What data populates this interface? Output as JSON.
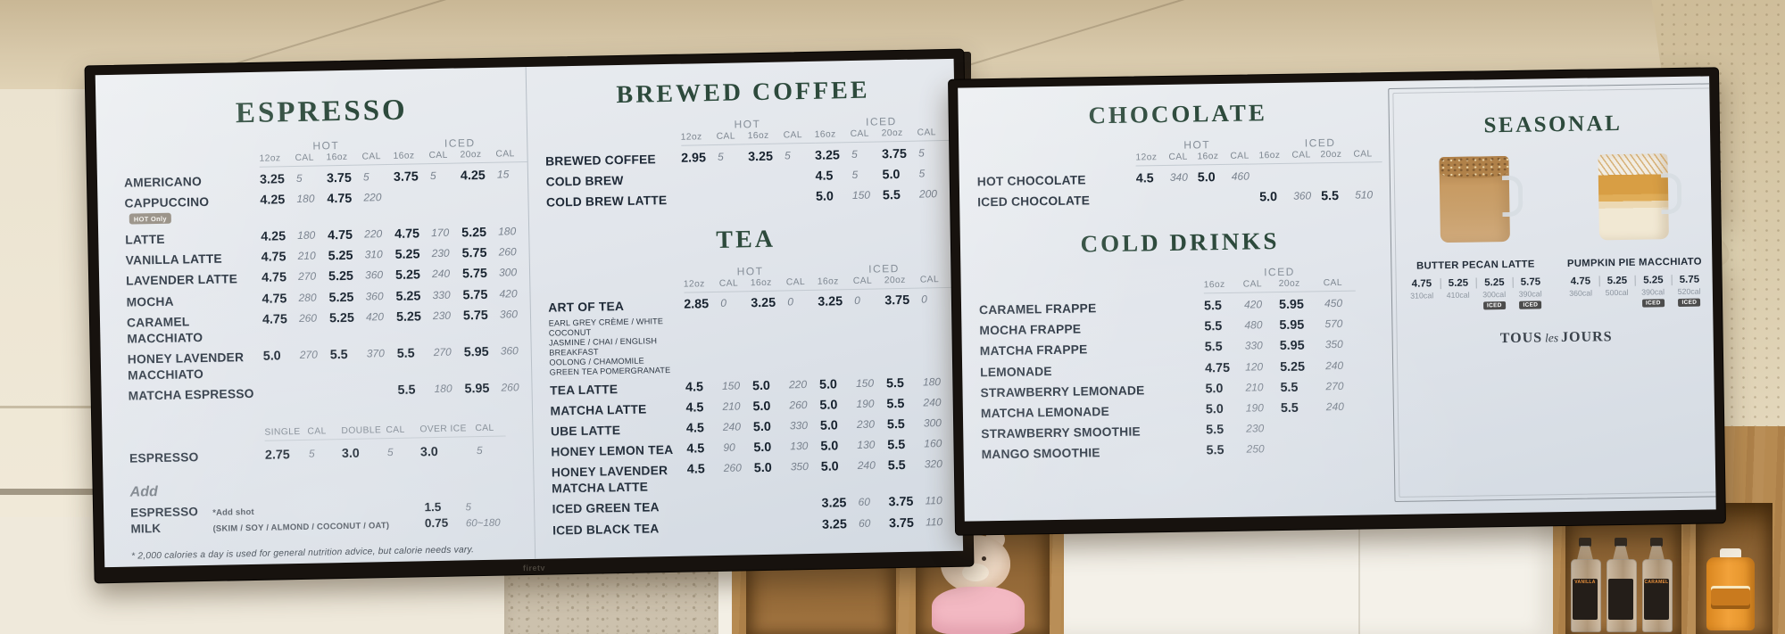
{
  "scene": {
    "bezel_brand": "firetv",
    "syrup_labels": [
      "VANILLA",
      "",
      "CARAMEL"
    ],
    "colors": {
      "title_green": "#2d4a3c",
      "screen_bg": "#e3e7ec",
      "bezel": "#17120e",
      "hot_only_badge": "#8d8579",
      "iced_badge": "#4c4c4c",
      "wood": "#b08449",
      "ceiling": "#d8c9ab"
    }
  },
  "left_screen": {
    "espresso": {
      "title": "ESPRESSO",
      "groups": [
        {
          "label": "HOT",
          "cols": [
            "12oz",
            "CAL",
            "16oz",
            "CAL"
          ]
        },
        {
          "label": "ICED",
          "cols": [
            "16oz",
            "CAL",
            "20oz",
            "CAL"
          ]
        }
      ],
      "items": [
        {
          "name": "AMERICANO",
          "cells": [
            "3.25",
            "5",
            "3.75",
            "5",
            "3.75",
            "5",
            "4.25",
            "15"
          ]
        },
        {
          "name": "CAPPUCCINO",
          "badge": "HOT Only",
          "cells": [
            "4.25",
            "180",
            "4.75",
            "220",
            "",
            "",
            "",
            ""
          ]
        },
        {
          "name": "LATTE",
          "cells": [
            "4.25",
            "180",
            "4.75",
            "220",
            "4.75",
            "170",
            "5.25",
            "180"
          ]
        },
        {
          "name": "VANILLA LATTE",
          "cells": [
            "4.75",
            "210",
            "5.25",
            "310",
            "5.25",
            "230",
            "5.75",
            "260"
          ]
        },
        {
          "name": "LAVENDER LATTE",
          "cells": [
            "4.75",
            "270",
            "5.25",
            "360",
            "5.25",
            "240",
            "5.75",
            "300"
          ]
        },
        {
          "name": "MOCHA",
          "cells": [
            "4.75",
            "280",
            "5.25",
            "360",
            "5.25",
            "330",
            "5.75",
            "420"
          ]
        },
        {
          "name": "CARAMEL MACCHIATO",
          "cells": [
            "4.75",
            "260",
            "5.25",
            "420",
            "5.25",
            "230",
            "5.75",
            "360"
          ]
        },
        {
          "name": "HONEY LAVENDER MACCHIATO",
          "cells": [
            "5.0",
            "270",
            "5.5",
            "370",
            "5.5",
            "270",
            "5.95",
            "360"
          ]
        },
        {
          "name": "MATCHA ESPRESSO",
          "cells": [
            "",
            "",
            "",
            "",
            "5.5",
            "180",
            "5.95",
            "260"
          ]
        }
      ]
    },
    "espresso_shots": {
      "cols": [
        "SINGLE",
        "CAL",
        "DOUBLE",
        "CAL",
        "OVER ICE",
        "CAL"
      ],
      "items": [
        {
          "name": "ESPRESSO",
          "cells": [
            "2.75",
            "5",
            "3.0",
            "5",
            "3.0",
            "5"
          ]
        }
      ]
    },
    "add": {
      "title": "Add",
      "items": [
        {
          "name": "ESPRESSO",
          "note": "*Add shot",
          "price": "1.5",
          "cal": "5"
        },
        {
          "name": "MILK",
          "note": "(SKIM / SOY / ALMOND / COCONUT / OAT)",
          "price": "0.75",
          "cal": "60~180"
        }
      ]
    },
    "footnote": "* 2,000 calories a day is used for general nutrition advice, but calorie needs vary.",
    "brewed_coffee": {
      "title": "BREWED COFFEE",
      "groups": [
        {
          "label": "HOT",
          "cols": [
            "12oz",
            "CAL",
            "16oz",
            "CAL"
          ]
        },
        {
          "label": "ICED",
          "cols": [
            "16oz",
            "CAL",
            "20oz",
            "CAL"
          ]
        }
      ],
      "items": [
        {
          "name": "BREWED COFFEE",
          "cells": [
            "2.95",
            "5",
            "3.25",
            "5",
            "3.25",
            "5",
            "3.75",
            "5"
          ]
        },
        {
          "name": "COLD BREW",
          "cells": [
            "",
            "",
            "",
            "",
            "4.5",
            "5",
            "5.0",
            "5"
          ]
        },
        {
          "name": "COLD BREW LATTE",
          "cells": [
            "",
            "",
            "",
            "",
            "5.0",
            "150",
            "5.5",
            "200"
          ]
        }
      ]
    },
    "tea": {
      "title": "TEA",
      "groups": [
        {
          "label": "HOT",
          "cols": [
            "12oz",
            "CAL",
            "16oz",
            "CAL"
          ]
        },
        {
          "label": "ICED",
          "cols": [
            "16oz",
            "CAL",
            "20oz",
            "CAL"
          ]
        }
      ],
      "items": [
        {
          "name": "ART OF TEA",
          "sub_lines": [
            "EARL GREY CRÈME / WHITE COCONUT",
            "JASMINE / CHAI / ENGLISH BREAKFAST",
            "OOLONG / CHAMOMILE",
            "GREEN TEA POMERGRANATE"
          ],
          "cells": [
            "2.85",
            "0",
            "3.25",
            "0",
            "3.25",
            "0",
            "3.75",
            "0"
          ]
        },
        {
          "name": "TEA LATTE",
          "cells": [
            "4.5",
            "150",
            "5.0",
            "220",
            "5.0",
            "150",
            "5.5",
            "180"
          ]
        },
        {
          "name": "MATCHA LATTE",
          "cells": [
            "4.5",
            "210",
            "5.0",
            "260",
            "5.0",
            "190",
            "5.5",
            "240"
          ]
        },
        {
          "name": "UBE LATTE",
          "cells": [
            "4.5",
            "240",
            "5.0",
            "330",
            "5.0",
            "230",
            "5.5",
            "300"
          ]
        },
        {
          "name": "HONEY LEMON TEA",
          "cells": [
            "4.5",
            "90",
            "5.0",
            "130",
            "5.0",
            "130",
            "5.5",
            "160"
          ]
        },
        {
          "name": "HONEY LAVENDER MATCHA LATTE",
          "cells": [
            "4.5",
            "260",
            "5.0",
            "350",
            "5.0",
            "240",
            "5.5",
            "320"
          ]
        },
        {
          "name": "ICED GREEN TEA",
          "cells": [
            "",
            "",
            "",
            "",
            "3.25",
            "60",
            "3.75",
            "110"
          ]
        },
        {
          "name": "ICED BLACK TEA",
          "cells": [
            "",
            "",
            "",
            "",
            "3.25",
            "60",
            "3.75",
            "110"
          ]
        }
      ]
    }
  },
  "right_screen": {
    "chocolate": {
      "title": "CHOCOLATE",
      "groups": [
        {
          "label": "HOT",
          "cols": [
            "12oz",
            "CAL",
            "16oz",
            "CAL"
          ]
        },
        {
          "label": "ICED",
          "cols": [
            "16oz",
            "CAL",
            "20oz",
            "CAL"
          ]
        }
      ],
      "items": [
        {
          "name": "HOT CHOCOLATE",
          "cells": [
            "4.5",
            "340",
            "5.0",
            "460",
            "",
            "",
            "",
            ""
          ]
        },
        {
          "name": "ICED CHOCOLATE",
          "cells": [
            "",
            "",
            "",
            "",
            "5.0",
            "360",
            "5.5",
            "510"
          ]
        }
      ]
    },
    "cold_drinks": {
      "title": "COLD DRINKS",
      "groups": [
        {
          "label": "ICED",
          "cols": [
            "16oz",
            "CAL",
            "20oz",
            "CAL"
          ]
        }
      ],
      "items": [
        {
          "name": "CARAMEL FRAPPE",
          "cells": [
            "5.5",
            "420",
            "5.95",
            "450"
          ]
        },
        {
          "name": "MOCHA FRAPPE",
          "cells": [
            "5.5",
            "480",
            "5.95",
            "570"
          ]
        },
        {
          "name": "MATCHA FRAPPE",
          "cells": [
            "5.5",
            "330",
            "5.95",
            "350"
          ]
        },
        {
          "name": "LEMONADE",
          "cells": [
            "4.75",
            "120",
            "5.25",
            "240"
          ]
        },
        {
          "name": "STRAWBERRY LEMONADE",
          "cells": [
            "5.0",
            "210",
            "5.5",
            "270"
          ]
        },
        {
          "name": "MATCHA LEMONADE",
          "cells": [
            "5.0",
            "190",
            "5.5",
            "240"
          ]
        },
        {
          "name": "STRAWBERRY SMOOTHIE",
          "cells": [
            "5.5",
            "230",
            "",
            ""
          ]
        },
        {
          "name": "MANGO SMOOTHIE",
          "cells": [
            "5.5",
            "250",
            "",
            ""
          ]
        }
      ]
    },
    "seasonal": {
      "title": "SEASONAL",
      "products": [
        {
          "name": "BUTTER PECAN LATTE",
          "mug": "butter-pecan",
          "prices": [
            "4.75",
            "5.25",
            "5.25",
            "5.75"
          ],
          "cals": [
            "310cal",
            "410cal",
            "300cal",
            "390cal"
          ],
          "badges": [
            "",
            "",
            "ICED",
            "ICED"
          ]
        },
        {
          "name": "PUMPKIN PIE MACCHIATO",
          "mug": "pumpkin-pie",
          "prices": [
            "4.75",
            "5.25",
            "5.25",
            "5.75"
          ],
          "cals": [
            "360cal",
            "500cal",
            "390cal",
            "520cal"
          ],
          "badges": [
            "",
            "",
            "ICED",
            "ICED"
          ]
        }
      ],
      "logo": {
        "part1": "TOUS",
        "part2": "les",
        "part3": "JOURS"
      }
    }
  }
}
